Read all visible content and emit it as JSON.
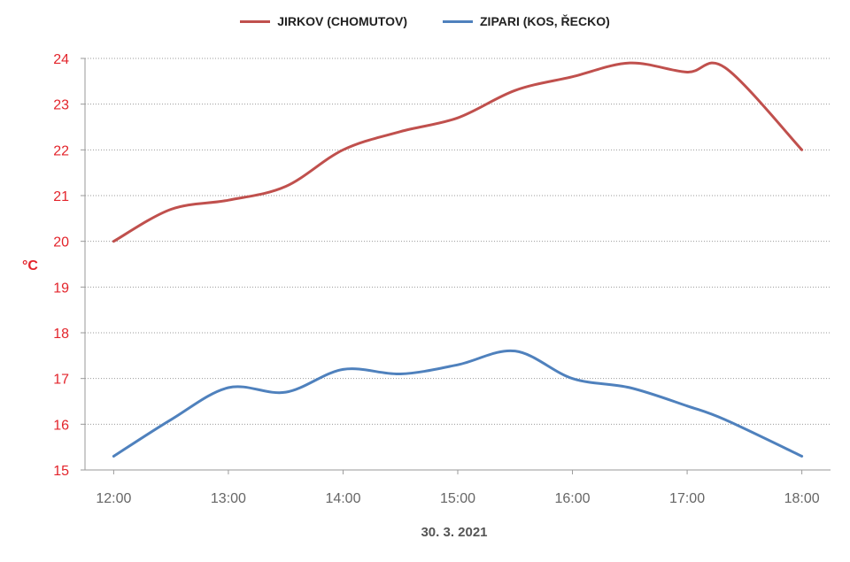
{
  "chart_data": {
    "type": "line",
    "x": [
      "12:00",
      "12:30",
      "13:00",
      "13:30",
      "14:00",
      "14:30",
      "15:00",
      "15:30",
      "16:00",
      "16:30",
      "17:00",
      "17:20",
      "18:00"
    ],
    "x_hours": [
      12.0,
      12.5,
      13.0,
      13.5,
      14.0,
      14.5,
      15.0,
      15.5,
      16.0,
      16.5,
      17.0,
      17.33,
      18.0
    ],
    "series": [
      {
        "name": "JIRKOV (CHOMUTOV)",
        "color": "#c0504d",
        "values": [
          20.0,
          20.7,
          20.9,
          21.2,
          22.0,
          22.4,
          22.7,
          23.3,
          23.6,
          23.9,
          23.7,
          23.8,
          22.0
        ]
      },
      {
        "name": "ZIPARI (KOS, ŘECKO)",
        "color": "#4f81bd",
        "values": [
          15.3,
          16.1,
          16.8,
          16.7,
          17.2,
          17.1,
          17.3,
          17.6,
          17.0,
          16.8,
          16.4,
          16.1,
          15.3
        ]
      }
    ],
    "xticks": [
      "12:00",
      "13:00",
      "14:00",
      "15:00",
      "16:00",
      "17:00",
      "18:00"
    ],
    "xtick_hours": [
      12,
      13,
      14,
      15,
      16,
      17,
      18
    ],
    "yticks": [
      15,
      16,
      17,
      18,
      19,
      20,
      21,
      22,
      23,
      24
    ],
    "ylim": [
      15,
      24
    ],
    "xlim": [
      11.75,
      18.25
    ],
    "xlabel": "30. 3. 2021",
    "ylabel": "°C",
    "grid": true,
    "legend_position": "top-center",
    "ytick_color": "#e3242b",
    "xtick_color": "#666666"
  }
}
